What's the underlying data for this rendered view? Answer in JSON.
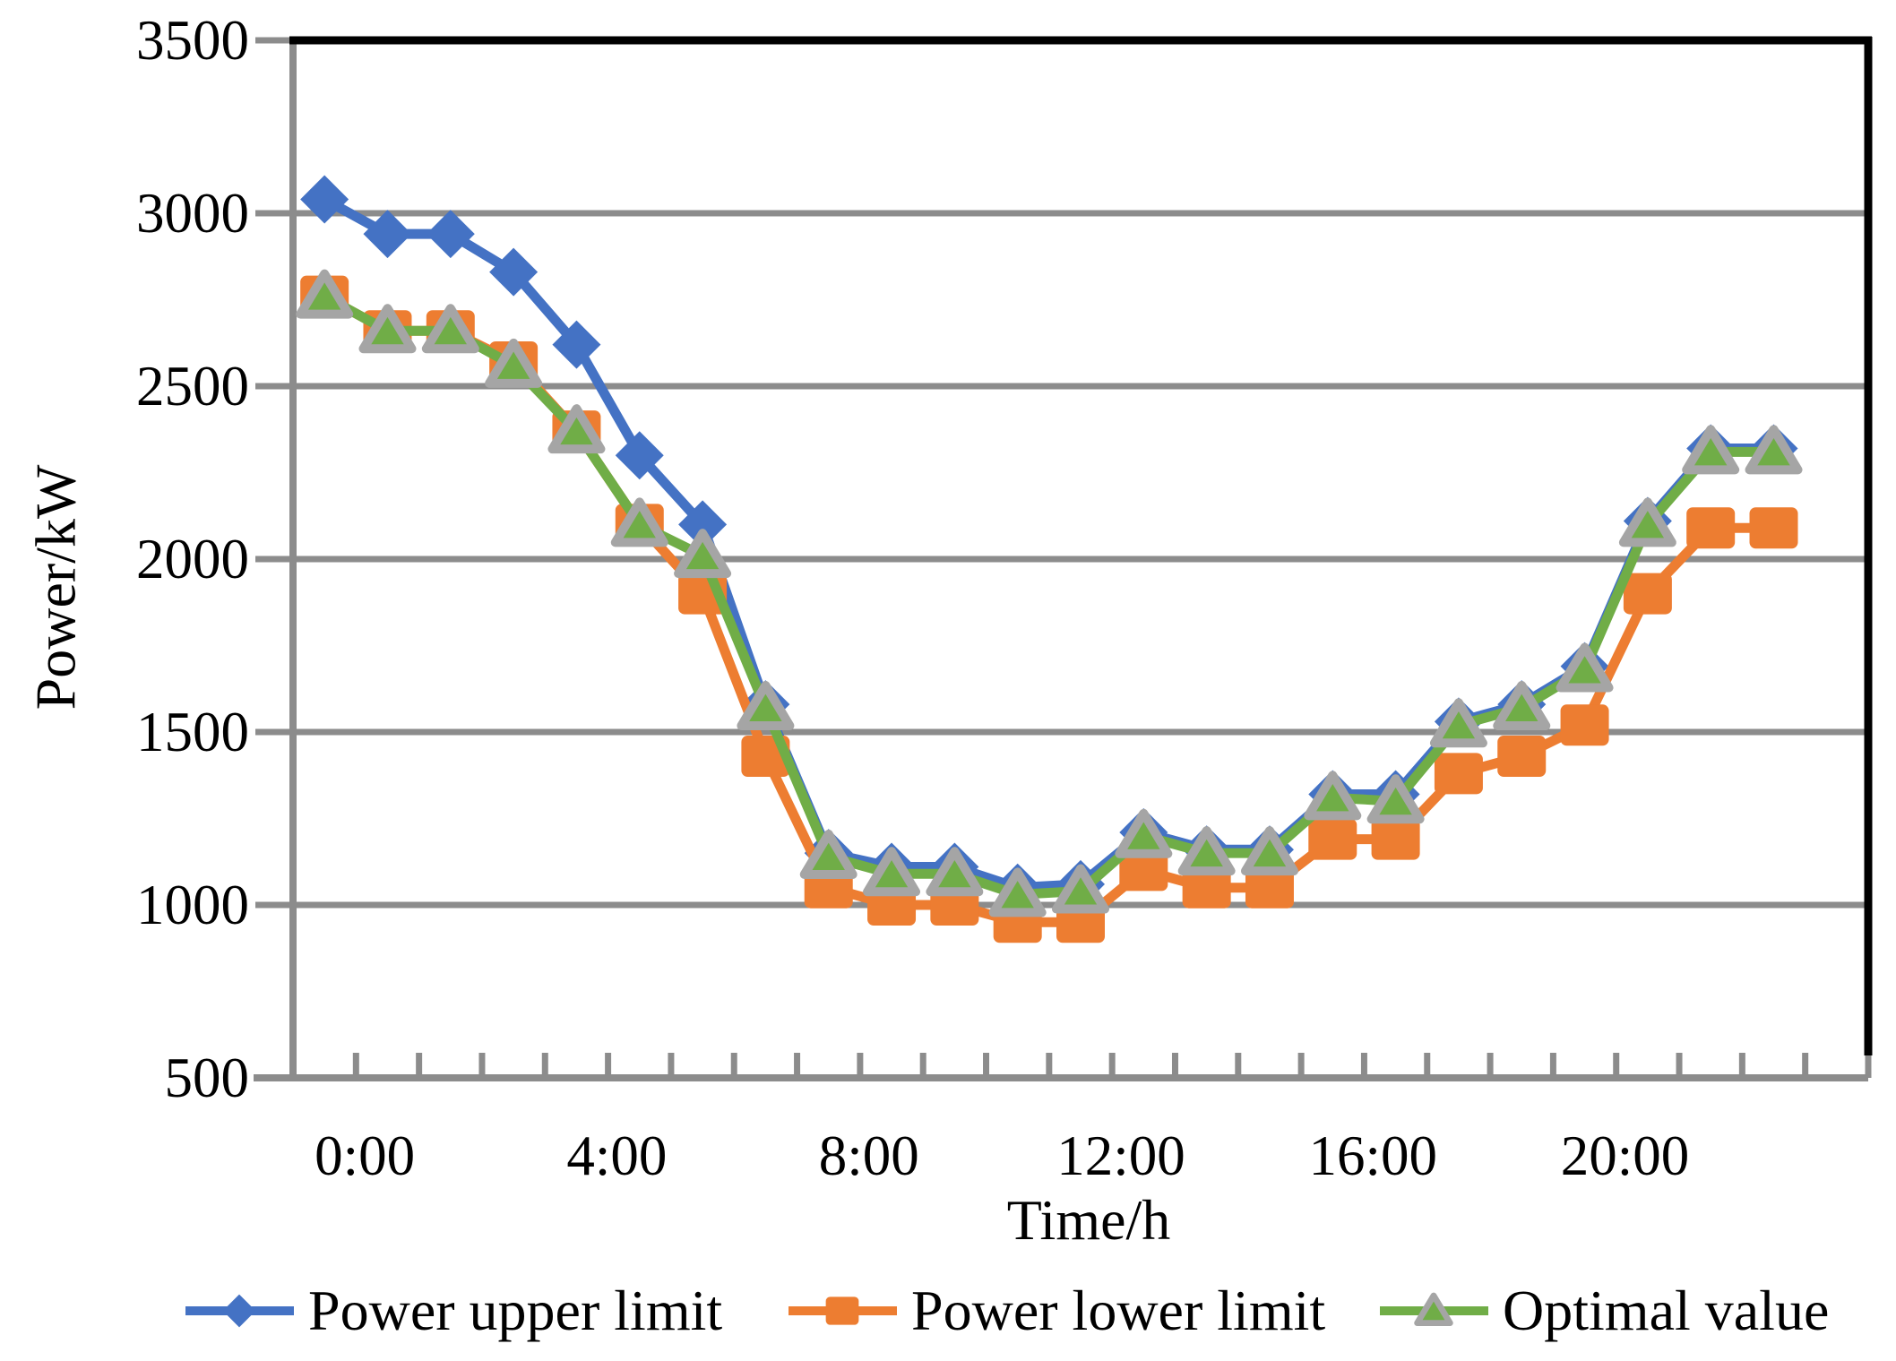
{
  "figure": {
    "y_axis_title": "Power/kW",
    "x_axis_title": "Time/h"
  },
  "chart_data": {
    "type": "line",
    "title": "",
    "xlabel": "Time/h",
    "ylabel": "Power/kW",
    "ylim": [
      500,
      3500
    ],
    "y_tick_step": 500,
    "y_tick_labels": [
      "3500",
      "3000",
      "2500",
      "2000",
      "1500",
      "1000",
      "500"
    ],
    "x_tick_labels": [
      "0:00",
      "4:00",
      "8:00",
      "12:00",
      "16:00",
      "20:00"
    ],
    "x_label_hours": [
      0,
      4,
      8,
      12,
      16,
      20
    ],
    "grid": "horizontal-only",
    "legend_position": "bottom",
    "categories": [
      "0:00",
      "1:00",
      "2:00",
      "3:00",
      "4:00",
      "5:00",
      "6:00",
      "7:00",
      "8:00",
      "9:00",
      "10:00",
      "11:00",
      "12:00",
      "13:00",
      "14:00",
      "15:00",
      "16:00",
      "17:00",
      "18:00",
      "19:00",
      "20:00",
      "21:00",
      "22:00",
      "23:00"
    ],
    "series": [
      {
        "name": "Power upper limit",
        "marker": "diamond",
        "color": "#4472C4",
        "values": [
          3040,
          2940,
          2940,
          2830,
          2620,
          2300,
          2100,
          1580,
          1150,
          1110,
          1110,
          1050,
          1060,
          1210,
          1160,
          1160,
          1320,
          1320,
          1530,
          1580,
          1690,
          2110,
          2320,
          2320
        ]
      },
      {
        "name": "Power lower limit",
        "marker": "square",
        "color": "#ED7D31",
        "values": [
          2760,
          2660,
          2660,
          2570,
          2370,
          2100,
          1900,
          1430,
          1050,
          1000,
          1000,
          950,
          950,
          1100,
          1050,
          1050,
          1190,
          1190,
          1380,
          1430,
          1520,
          1900,
          2090,
          2090
        ]
      },
      {
        "name": "Optimal value",
        "marker": "triangle",
        "color": "#70AD47",
        "marker_border": "#A5A5A5",
        "values": [
          2760,
          2660,
          2660,
          2560,
          2370,
          2100,
          2010,
          1570,
          1140,
          1090,
          1090,
          1030,
          1040,
          1200,
          1150,
          1150,
          1310,
          1300,
          1520,
          1570,
          1680,
          2100,
          2310,
          2310
        ]
      }
    ],
    "style_colors": {
      "gridline": "#8C8C8C",
      "axis": "#8C8C8C",
      "plot_border_top_right": "#000000",
      "text": "#000000"
    }
  }
}
